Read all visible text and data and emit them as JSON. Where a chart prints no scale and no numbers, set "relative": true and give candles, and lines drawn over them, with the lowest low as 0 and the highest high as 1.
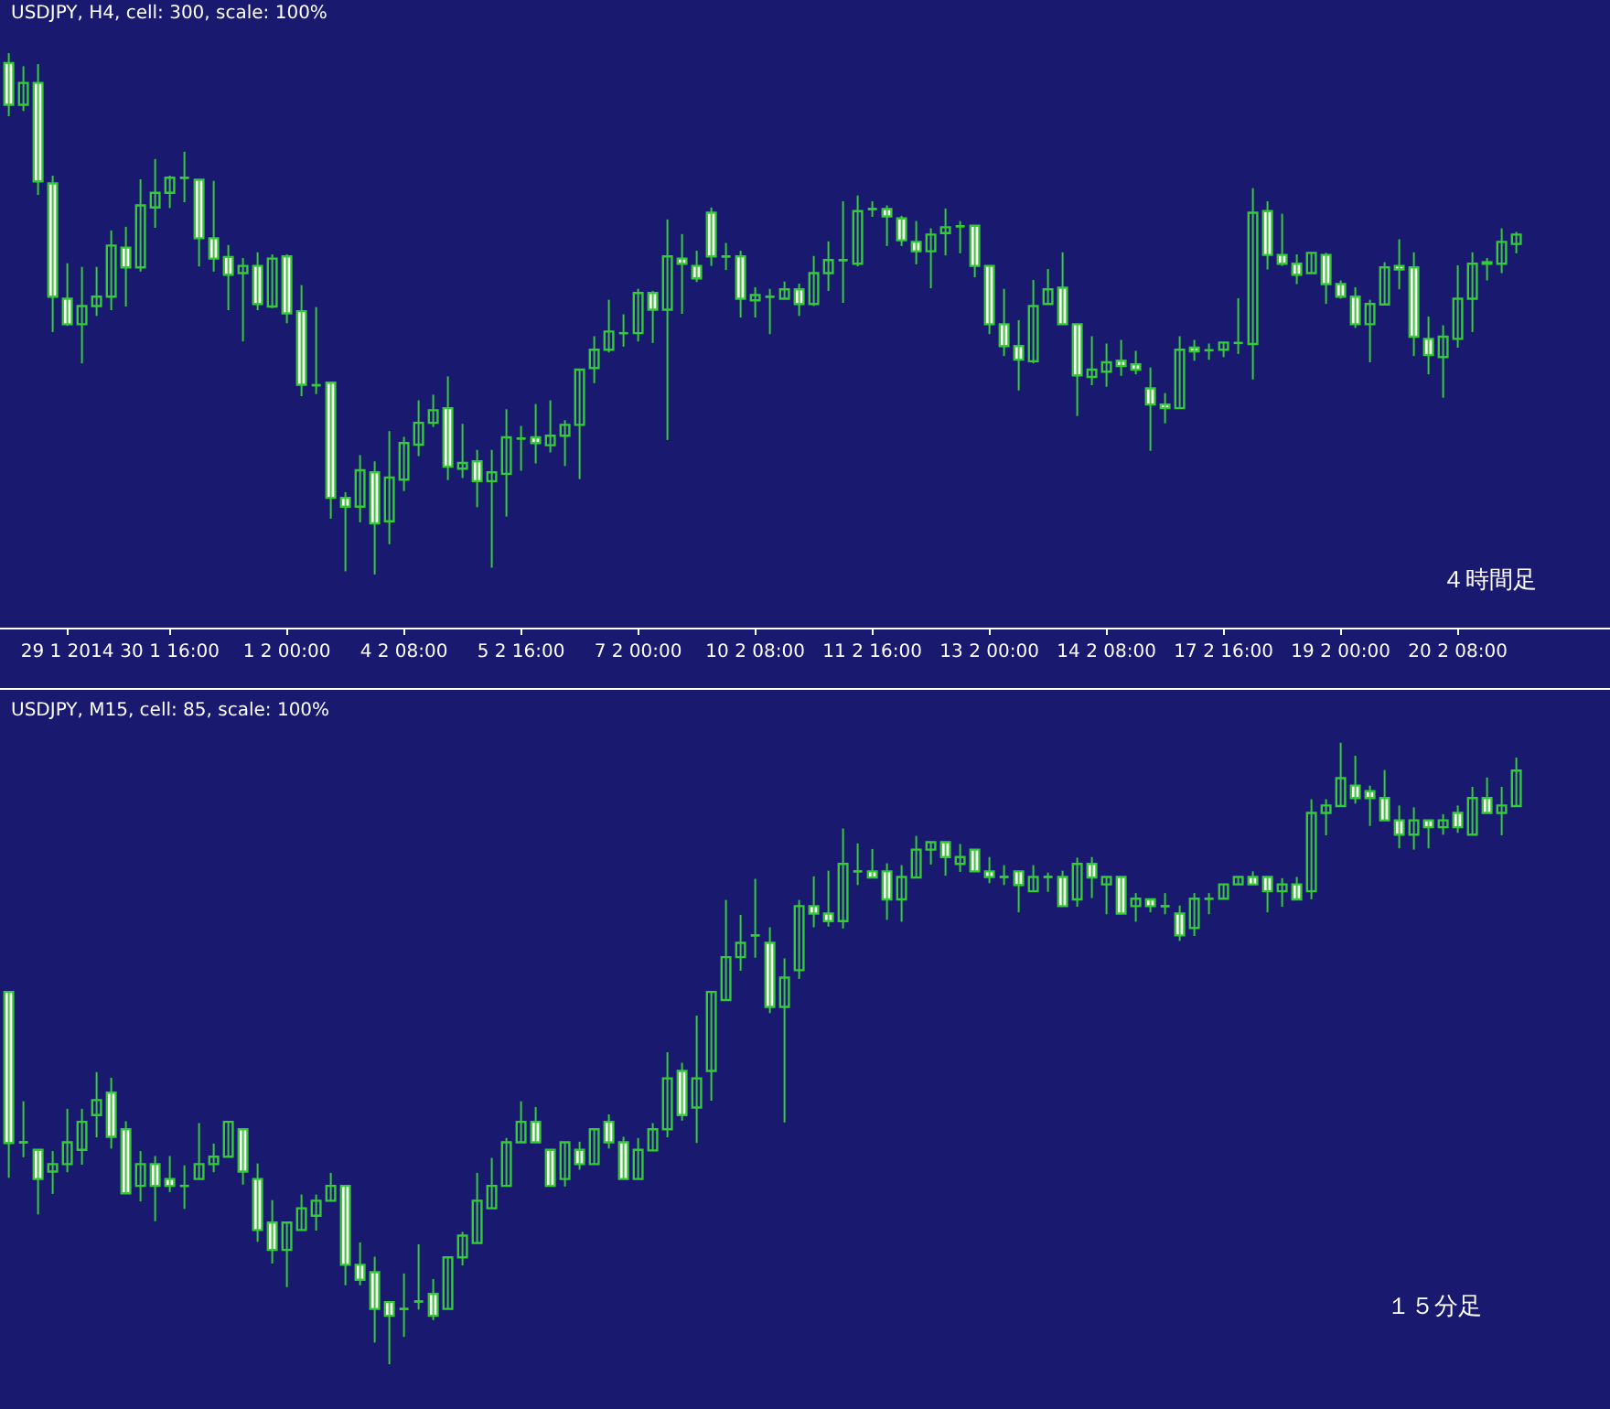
{
  "chart_data": [
    {
      "type": "candlestick",
      "title": "USDJPY, H4, cell: 300, scale: 100%",
      "relative": true,
      "tick_labels": "x",
      "color": "#32cd32",
      "annotations": [
        "４時間足"
      ],
      "categories": [
        null,
        null,
        null,
        null,
        "29 1 2014",
        null,
        null,
        null,
        null,
        null,
        null,
        "30 1 16:00",
        null,
        null,
        null,
        null,
        null,
        null,
        null,
        "1 2 00:00",
        null,
        null,
        null,
        null,
        null,
        null,
        null,
        "4 2 08:00",
        null,
        null,
        null,
        null,
        null,
        null,
        null,
        "5 2 16:00",
        null,
        null,
        null,
        null,
        null,
        null,
        null,
        "7 2 00:00",
        null,
        null,
        null,
        null,
        null,
        null,
        null,
        "10 2 08:00",
        null,
        null,
        null,
        null,
        null,
        null,
        null,
        "11 2 16:00",
        null,
        null,
        null,
        null,
        null,
        null,
        null,
        "13 2 00:00",
        null,
        null,
        null,
        null,
        null,
        null,
        null,
        "14 2 08:00",
        null,
        null,
        null,
        null,
        null,
        null,
        null,
        "17 2 16:00",
        null,
        null,
        null,
        null,
        null,
        null,
        null,
        "19 2 00:00",
        null,
        null,
        null,
        null,
        null,
        null,
        null,
        "20 2 08:00",
        null,
        null,
        null,
        null
      ],
      "ohlc": [
        [
          0.981,
          1,
          0.879,
          0.901
        ],
        [
          0.901,
          0.975,
          0.889,
          0.943
        ],
        [
          0.943,
          0.979,
          0.728,
          0.754
        ],
        [
          0.75,
          0.765,
          0.465,
          0.533
        ],
        [
          0.529,
          0.597,
          0.477,
          0.48
        ],
        [
          0.48,
          0.59,
          0.405,
          0.515
        ],
        [
          0.515,
          0.59,
          0.496,
          0.533
        ],
        [
          0.533,
          0.66,
          0.507,
          0.631
        ],
        [
          0.627,
          0.667,
          0.514,
          0.589
        ],
        [
          0.589,
          0.758,
          0.581,
          0.708
        ],
        [
          0.704,
          0.797,
          0.665,
          0.732
        ],
        [
          0.732,
          0.765,
          0.703,
          0.761
        ],
        [
          0.761,
          0.811,
          0.714,
          0.761
        ],
        [
          0.757,
          0.758,
          0.591,
          0.645
        ],
        [
          0.645,
          0.755,
          0.581,
          0.606
        ],
        [
          0.609,
          0.632,
          0.507,
          0.575
        ],
        [
          0.578,
          0.607,
          0.447,
          0.592
        ],
        [
          0.592,
          0.618,
          0.507,
          0.519
        ],
        [
          0.514,
          0.614,
          0.511,
          0.606
        ],
        [
          0.61,
          0.614,
          0.482,
          0.501
        ],
        [
          0.505,
          0.555,
          0.342,
          0.364
        ],
        [
          0.363,
          0.513,
          0.346,
          0.363
        ],
        [
          0.368,
          0.368,
          0.107,
          0.147
        ],
        [
          0.147,
          0.158,
          0.006,
          0.13
        ],
        [
          0.13,
          0.229,
          0.1,
          0.2
        ],
        [
          0.196,
          0.217,
          0,
          0.098
        ],
        [
          0.102,
          0.275,
          0.058,
          0.186
        ],
        [
          0.182,
          0.264,
          0.16,
          0.252
        ],
        [
          0.249,
          0.334,
          0.227,
          0.291
        ],
        [
          0.291,
          0.345,
          0.283,
          0.315
        ],
        [
          0.319,
          0.38,
          0.181,
          0.207
        ],
        [
          0.203,
          0.289,
          0.185,
          0.214
        ],
        [
          0.217,
          0.239,
          0.129,
          0.179
        ],
        [
          0.179,
          0.239,
          0.013,
          0.196
        ],
        [
          0.193,
          0.317,
          0.111,
          0.263
        ],
        [
          0.261,
          0.285,
          0.199,
          0.261
        ],
        [
          0.263,
          0.327,
          0.213,
          0.252
        ],
        [
          0.248,
          0.334,
          0.234,
          0.266
        ],
        [
          0.266,
          0.296,
          0.208,
          0.287
        ],
        [
          0.287,
          0.393,
          0.183,
          0.393
        ],
        [
          0.396,
          0.457,
          0.367,
          0.431
        ],
        [
          0.431,
          0.527,
          0.426,
          0.466
        ],
        [
          0.463,
          0.499,
          0.437,
          0.463
        ],
        [
          0.463,
          0.548,
          0.447,
          0.54
        ],
        [
          0.54,
          0.544,
          0.444,
          0.508
        ],
        [
          0.508,
          0.681,
          0.258,
          0.61
        ],
        [
          0.606,
          0.653,
          0.5,
          0.596
        ],
        [
          0.592,
          0.621,
          0.561,
          0.568
        ],
        [
          0.694,
          0.704,
          0.592,
          0.61
        ],
        [
          0.61,
          0.636,
          0.584,
          0.61
        ],
        [
          0.61,
          0.621,
          0.493,
          0.529
        ],
        [
          0.526,
          0.551,
          0.493,
          0.536
        ],
        [
          0.533,
          0.548,
          0.461,
          0.533
        ],
        [
          0.529,
          0.562,
          0.529,
          0.547
        ],
        [
          0.547,
          0.558,
          0.496,
          0.519
        ],
        [
          0.519,
          0.611,
          0.515,
          0.578
        ],
        [
          0.578,
          0.639,
          0.544,
          0.603
        ],
        [
          0.603,
          0.716,
          0.521,
          0.603
        ],
        [
          0.596,
          0.727,
          0.591,
          0.697
        ],
        [
          0.701,
          0.716,
          0.686,
          0.701
        ],
        [
          0.701,
          0.708,
          0.63,
          0.687
        ],
        [
          0.683,
          0.688,
          0.63,
          0.641
        ],
        [
          0.638,
          0.678,
          0.595,
          0.62
        ],
        [
          0.62,
          0.664,
          0.549,
          0.652
        ],
        [
          0.655,
          0.702,
          0.612,
          0.666
        ],
        [
          0.668,
          0.678,
          0.616,
          0.668
        ],
        [
          0.669,
          0.669,
          0.57,
          0.592
        ],
        [
          0.592,
          0.592,
          0.461,
          0.48
        ],
        [
          0.48,
          0.548,
          0.419,
          0.438
        ],
        [
          0.438,
          0.488,
          0.353,
          0.412
        ],
        [
          0.409,
          0.565,
          0.405,
          0.515
        ],
        [
          0.519,
          0.586,
          0.519,
          0.547
        ],
        [
          0.55,
          0.618,
          0.48,
          0.48
        ],
        [
          0.48,
          0.48,
          0.304,
          0.382
        ],
        [
          0.379,
          0.457,
          0.363,
          0.393
        ],
        [
          0.389,
          0.443,
          0.36,
          0.407
        ],
        [
          0.41,
          0.45,
          0.381,
          0.4
        ],
        [
          0.403,
          0.429,
          0.384,
          0.393
        ],
        [
          0.357,
          0.397,
          0.237,
          0.326
        ],
        [
          0.326,
          0.348,
          0.29,
          0.319
        ],
        [
          0.319,
          0.457,
          0.319,
          0.431
        ],
        [
          0.435,
          0.45,
          0.41,
          0.428
        ],
        [
          0.43,
          0.443,
          0.412,
          0.43
        ],
        [
          0.431,
          0.445,
          0.417,
          0.445
        ],
        [
          0.444,
          0.53,
          0.423,
          0.444
        ],
        [
          0.442,
          0.741,
          0.374,
          0.694
        ],
        [
          0.697,
          0.716,
          0.585,
          0.613
        ],
        [
          0.613,
          0.692,
          0.592,
          0.596
        ],
        [
          0.596,
          0.614,
          0.557,
          0.575
        ],
        [
          0.578,
          0.617,
          0.578,
          0.617
        ],
        [
          0.613,
          0.617,
          0.519,
          0.557
        ],
        [
          0.557,
          0.564,
          0.529,
          0.533
        ],
        [
          0.533,
          0.551,
          0.473,
          0.48
        ],
        [
          0.48,
          0.527,
          0.407,
          0.519
        ],
        [
          0.518,
          0.599,
          0.518,
          0.589
        ],
        [
          0.592,
          0.643,
          0.547,
          0.585
        ],
        [
          0.589,
          0.618,
          0.419,
          0.456
        ],
        [
          0.452,
          0.495,
          0.384,
          0.421
        ],
        [
          0.417,
          0.478,
          0.339,
          0.456
        ],
        [
          0.452,
          0.593,
          0.435,
          0.529
        ],
        [
          0.529,
          0.618,
          0.465,
          0.596
        ],
        [
          0.596,
          0.607,
          0.564,
          0.599
        ],
        [
          0.596,
          0.664,
          0.578,
          0.638
        ],
        [
          0.634,
          0.657,
          0.616,
          0.652
        ]
      ]
    },
    {
      "type": "candlestick",
      "title": "USDJPY, M15, cell: 85, scale: 100%",
      "relative": true,
      "tick_labels": false,
      "color": "#32cd32",
      "annotations": [
        "１５分足"
      ],
      "categories": [
        null,
        null,
        null,
        null,
        null,
        null,
        null,
        null,
        null,
        null,
        null,
        null,
        null,
        null,
        null,
        null,
        null,
        null,
        null,
        null,
        null,
        null,
        null,
        null,
        null,
        null,
        null,
        null,
        null,
        null,
        null,
        null,
        null,
        null,
        null,
        null,
        null,
        null,
        null,
        null,
        null,
        null,
        null,
        null,
        null,
        null,
        null,
        null,
        null,
        null,
        null,
        null,
        null,
        null,
        null,
        null,
        null,
        null,
        null,
        null,
        null,
        null,
        null,
        null,
        null,
        null,
        null,
        null,
        null,
        null,
        null,
        null,
        null,
        null,
        null,
        null,
        null,
        null,
        null,
        null,
        null,
        null,
        null,
        null,
        null,
        null,
        null,
        null,
        null,
        null,
        null,
        null,
        null,
        null,
        null,
        null,
        null,
        null,
        null,
        null,
        null,
        null,
        null,
        null
      ],
      "ohlc": [
        [
          0.599,
          0.599,
          0.3,
          0.356
        ],
        [
          0.357,
          0.423,
          0.333,
          0.357
        ],
        [
          0.345,
          0.345,
          0.241,
          0.298
        ],
        [
          0.31,
          0.343,
          0.274,
          0.322
        ],
        [
          0.322,
          0.411,
          0.309,
          0.357
        ],
        [
          0.345,
          0.411,
          0.321,
          0.39
        ],
        [
          0.401,
          0.47,
          0.365,
          0.425
        ],
        [
          0.437,
          0.461,
          0.347,
          0.366
        ],
        [
          0.378,
          0.391,
          0.274,
          0.275
        ],
        [
          0.287,
          0.343,
          0.262,
          0.322
        ],
        [
          0.322,
          0.335,
          0.23,
          0.287
        ],
        [
          0.298,
          0.335,
          0.277,
          0.287
        ],
        [
          0.287,
          0.32,
          0.25,
          0.287
        ],
        [
          0.298,
          0.388,
          0.298,
          0.322
        ],
        [
          0.322,
          0.355,
          0.309,
          0.334
        ],
        [
          0.334,
          0.39,
          0.333,
          0.39
        ],
        [
          0.378,
          0.378,
          0.289,
          0.31
        ],
        [
          0.298,
          0.323,
          0.197,
          0.216
        ],
        [
          0.228,
          0.264,
          0.162,
          0.184
        ],
        [
          0.184,
          0.228,
          0.124,
          0.228
        ],
        [
          0.216,
          0.273,
          0.215,
          0.251
        ],
        [
          0.239,
          0.273,
          0.215,
          0.263
        ],
        [
          0.263,
          0.308,
          0.262,
          0.287
        ],
        [
          0.287,
          0.287,
          0.127,
          0.16
        ],
        [
          0.16,
          0.196,
          0.127,
          0.136
        ],
        [
          0.148,
          0.173,
          0.035,
          0.089
        ],
        [
          0.1,
          0.1,
          0,
          0.078
        ],
        [
          0.089,
          0.146,
          0.044,
          0.089
        ],
        [
          0.101,
          0.193,
          0.088,
          0.101
        ],
        [
          0.113,
          0.137,
          0.071,
          0.078
        ],
        [
          0.089,
          0.172,
          0.089,
          0.172
        ],
        [
          0.172,
          0.213,
          0.159,
          0.207
        ],
        [
          0.195,
          0.308,
          0.195,
          0.263
        ],
        [
          0.251,
          0.332,
          0.251,
          0.287
        ],
        [
          0.287,
          0.364,
          0.287,
          0.357
        ],
        [
          0.357,
          0.423,
          0.357,
          0.39
        ],
        [
          0.39,
          0.414,
          0.357,
          0.357
        ],
        [
          0.345,
          0.345,
          0.287,
          0.287
        ],
        [
          0.298,
          0.357,
          0.286,
          0.357
        ],
        [
          0.345,
          0.358,
          0.313,
          0.322
        ],
        [
          0.322,
          0.378,
          0.322,
          0.378
        ],
        [
          0.39,
          0.402,
          0.347,
          0.357
        ],
        [
          0.357,
          0.366,
          0.298,
          0.298
        ],
        [
          0.298,
          0.364,
          0.298,
          0.345
        ],
        [
          0.344,
          0.388,
          0.344,
          0.378
        ],
        [
          0.378,
          0.502,
          0.365,
          0.46
        ],
        [
          0.472,
          0.485,
          0.392,
          0.401
        ],
        [
          0.413,
          0.561,
          0.356,
          0.46
        ],
        [
          0.472,
          0.599,
          0.424,
          0.599
        ],
        [
          0.586,
          0.747,
          0.586,
          0.655
        ],
        [
          0.655,
          0.723,
          0.633,
          0.678
        ],
        [
          0.69,
          0.781,
          0.654,
          0.69
        ],
        [
          0.678,
          0.703,
          0.565,
          0.575
        ],
        [
          0.575,
          0.653,
          0.389,
          0.622
        ],
        [
          0.634,
          0.747,
          0.62,
          0.737
        ],
        [
          0.737,
          0.785,
          0.703,
          0.725
        ],
        [
          0.725,
          0.794,
          0.704,
          0.713
        ],
        [
          0.713,
          0.862,
          0.701,
          0.805
        ],
        [
          0.793,
          0.838,
          0.771,
          0.793
        ],
        [
          0.793,
          0.829,
          0.783,
          0.783
        ],
        [
          0.793,
          0.806,
          0.715,
          0.748
        ],
        [
          0.748,
          0.803,
          0.712,
          0.784
        ],
        [
          0.783,
          0.85,
          0.783,
          0.828
        ],
        [
          0.828,
          0.84,
          0.804,
          0.84
        ],
        [
          0.84,
          0.84,
          0.786,
          0.816
        ],
        [
          0.805,
          0.837,
          0.792,
          0.816
        ],
        [
          0.828,
          0.828,
          0.792,
          0.793
        ],
        [
          0.793,
          0.816,
          0.774,
          0.784
        ],
        [
          0.784,
          0.803,
          0.771,
          0.784
        ],
        [
          0.793,
          0.793,
          0.727,
          0.771
        ],
        [
          0.761,
          0.803,
          0.76,
          0.784
        ],
        [
          0.784,
          0.791,
          0.76,
          0.784
        ],
        [
          0.784,
          0.794,
          0.737,
          0.737
        ],
        [
          0.748,
          0.815,
          0.736,
          0.805
        ],
        [
          0.805,
          0.816,
          0.75,
          0.783
        ],
        [
          0.772,
          0.784,
          0.724,
          0.784
        ],
        [
          0.784,
          0.784,
          0.725,
          0.725
        ],
        [
          0.737,
          0.758,
          0.712,
          0.749
        ],
        [
          0.748,
          0.748,
          0.727,
          0.737
        ],
        [
          0.737,
          0.758,
          0.724,
          0.737
        ],
        [
          0.725,
          0.738,
          0.681,
          0.69
        ],
        [
          0.702,
          0.758,
          0.689,
          0.749
        ],
        [
          0.749,
          0.758,
          0.724,
          0.749
        ],
        [
          0.749,
          0.772,
          0.749,
          0.772
        ],
        [
          0.772,
          0.784,
          0.772,
          0.784
        ],
        [
          0.784,
          0.793,
          0.772,
          0.772
        ],
        [
          0.784,
          0.784,
          0.727,
          0.761
        ],
        [
          0.761,
          0.782,
          0.736,
          0.772
        ],
        [
          0.772,
          0.784,
          0.748,
          0.748
        ],
        [
          0.761,
          0.909,
          0.748,
          0.887
        ],
        [
          0.887,
          0.909,
          0.851,
          0.899
        ],
        [
          0.898,
          1,
          0.898,
          0.943
        ],
        [
          0.931,
          0.979,
          0.902,
          0.911
        ],
        [
          0.922,
          0.931,
          0.866,
          0.911
        ],
        [
          0.911,
          0.956,
          0.875,
          0.875
        ],
        [
          0.875,
          0.899,
          0.83,
          0.852
        ],
        [
          0.852,
          0.896,
          0.828,
          0.875
        ],
        [
          0.875,
          0.875,
          0.83,
          0.864
        ],
        [
          0.864,
          0.885,
          0.852,
          0.875
        ],
        [
          0.887,
          0.899,
          0.855,
          0.864
        ],
        [
          0.852,
          0.929,
          0.852,
          0.911
        ],
        [
          0.911,
          0.944,
          0.887,
          0.887
        ],
        [
          0.887,
          0.929,
          0.851,
          0.899
        ],
        [
          0.898,
          0.976,
          0.898,
          0.955
        ]
      ]
    }
  ]
}
